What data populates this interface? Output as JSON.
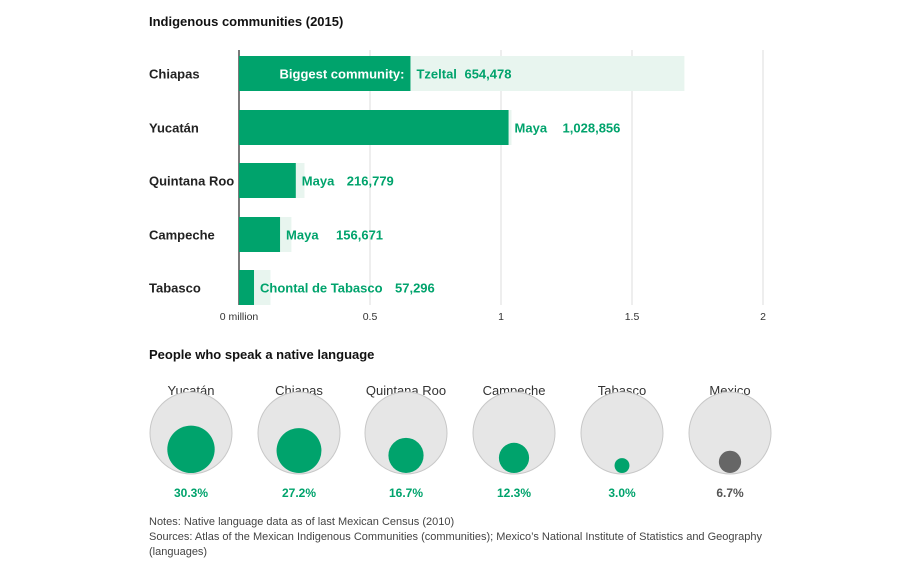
{
  "chart_data": [
    {
      "type": "bar",
      "title": "Indigenous communities (2015)",
      "categories": [
        "Chiapas",
        "Yucatán",
        "Quintana Roo",
        "Campeche",
        "Tabasco"
      ],
      "series": [
        {
          "values": [
            1.7,
            1.04,
            0.25,
            0.2,
            0.12
          ]
        },
        {
          "values": [
            654478,
            1028856,
            216779,
            156671,
            57296
          ]
        }
      ],
      "communities": [
        "Tzeltal",
        "Maya",
        "Maya",
        "Maya",
        "Chontal de Tabasco"
      ],
      "value_labels": [
        "654,478",
        "1,028,856",
        "216,779",
        "156,671",
        "57,296"
      ],
      "annotation": "Biggest community:",
      "xticks": [
        "0 million",
        "0.5",
        "1",
        "1.5",
        "2"
      ],
      "xtick_values": [
        0,
        0.5,
        1,
        1.5,
        2
      ],
      "xlim": [
        0,
        2
      ],
      "grid": true,
      "colors": {
        "primary": "#00a36c",
        "secondary": "#e8f5ef"
      }
    },
    {
      "type": "bubble",
      "title": "People who speak a native language",
      "categories": [
        "Yucatán",
        "Chiapas",
        "Quintana Roo",
        "Campeche",
        "Tabasco",
        "Mexico"
      ],
      "values": [
        30.3,
        27.2,
        16.7,
        12.3,
        3.0,
        6.7
      ],
      "value_labels": [
        "30.3%",
        "27.2%",
        "16.7%",
        "12.3%",
        "3.0%",
        "6.7%"
      ],
      "colors": [
        "#00a36c",
        "#00a36c",
        "#00a36c",
        "#00a36c",
        "#00a36c",
        "#666666"
      ]
    }
  ],
  "notes": {
    "line1": "Notes: Native language data as of last Mexican Census (2010)",
    "line2": "Sources: Atlas of the Mexican Indigenous Communities (communities); Mexico’s National Institute of Statistics and Geography (languages)"
  }
}
